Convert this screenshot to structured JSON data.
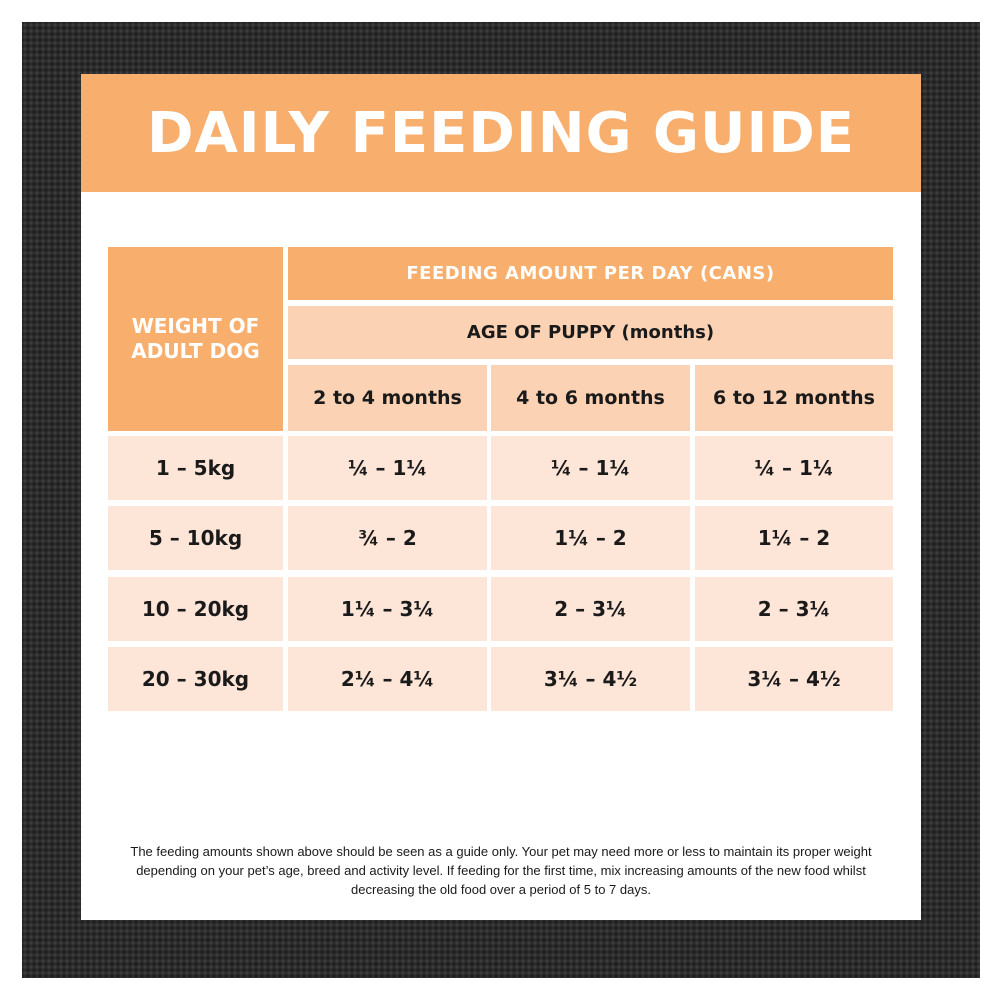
{
  "title": "DAILY FEEDING GUIDE",
  "table": {
    "weight_header": "WEIGHT OF ADULT DOG",
    "feeding_header": "FEEDING AMOUNT PER DAY (CANS)",
    "age_header": "AGE OF PUPPY (months)",
    "age_columns": [
      "2 to 4 months",
      "4 to 6 months",
      "6 to 12 months"
    ],
    "rows": [
      {
        "weight": "1 – 5kg",
        "values": [
          "¼ – 1¼",
          "¼ – 1¼",
          "¼ – 1¼"
        ]
      },
      {
        "weight": "5 – 10kg",
        "values": [
          "¾ – 2",
          "1¼ – 2",
          "1¼ – 2"
        ]
      },
      {
        "weight": "10 – 20kg",
        "values": [
          "1¼ – 3¼",
          "2 – 3¼",
          "2 – 3¼"
        ]
      },
      {
        "weight": "20 – 30kg",
        "values": [
          "2¼ – 4¼",
          "3¼ – 4½",
          "3¼ – 4½"
        ]
      }
    ]
  },
  "note": "The feeding amounts shown above should be seen as a guide only. Your pet may need more or less to maintain its proper weight depending on your pet’s age, breed and activity level. If feeding for the first time, mix increasing amounts of the new food whilst decreasing the old food over a period of 5 to 7 days.",
  "colors": {
    "accent_orange": "#f8ae6c",
    "light_orange": "#fbd2b4",
    "pale_peach": "#fde5d8",
    "backdrop": "#2b2b2b"
  }
}
